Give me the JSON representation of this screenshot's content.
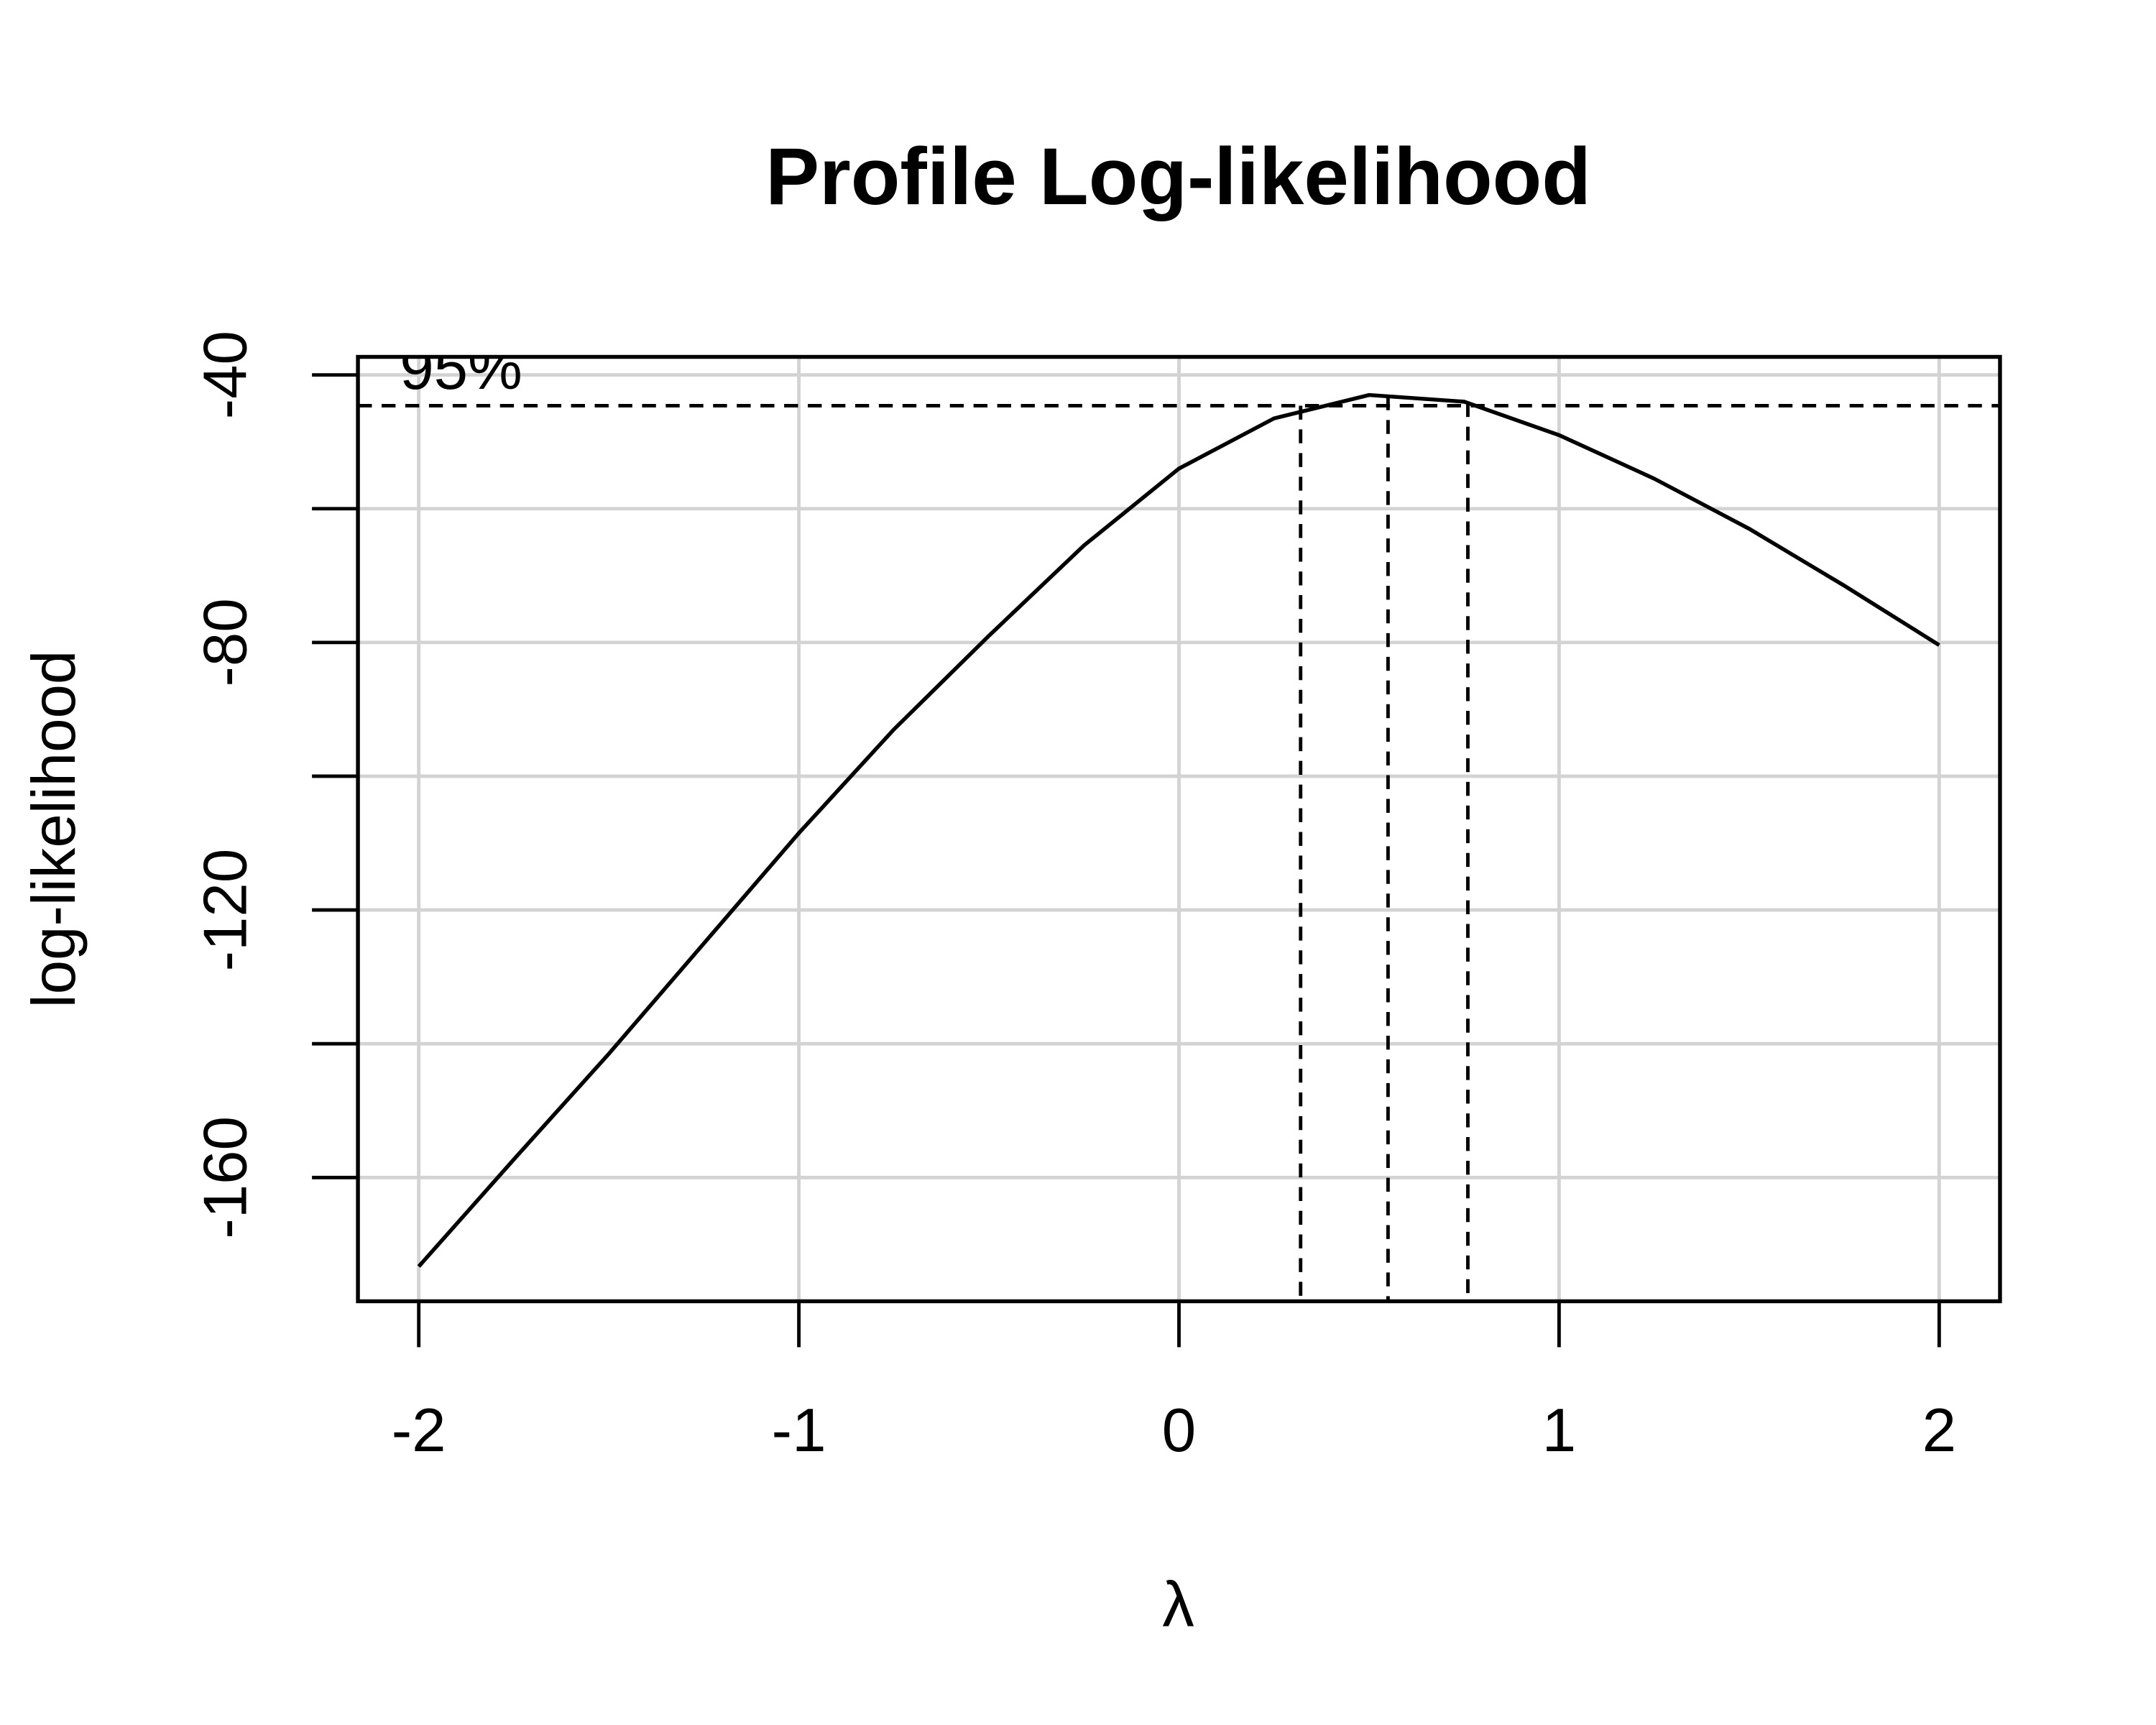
{
  "chart_data": {
    "type": "line",
    "title": "Profile Log-likelihood",
    "xlabel": "λ",
    "ylabel": "log-likelihood",
    "annotation": "95%",
    "x": [
      -2,
      -1.75,
      -1.5,
      -1.25,
      -1,
      -0.75,
      -0.5,
      -0.25,
      0,
      0.25,
      0.5,
      0.75,
      1,
      1.25,
      1.5,
      1.75,
      2
    ],
    "series": [
      {
        "color": "#000000",
        "values": [
          -173.3,
          -157.3,
          -141.5,
          -125,
          -108.5,
          -93,
          -79,
          -65.5,
          -54,
          -46.5,
          -43,
          -44,
          -49,
          -55.5,
          -63,
          -71.5,
          -80.4
        ]
      }
    ],
    "ci_level": -44.6,
    "ci_lambdas": [
      0.32,
      0.55,
      0.76
    ],
    "xlim": [
      -2.16,
      2.16
    ],
    "ylim": [
      -178.5,
      -37.3
    ],
    "xticks": [
      -2,
      -1,
      0,
      1,
      2
    ],
    "yticks": [
      -40,
      -80,
      -120,
      -160
    ],
    "yminor_ticks": [
      -60,
      -100,
      -140
    ],
    "grid": true
  }
}
